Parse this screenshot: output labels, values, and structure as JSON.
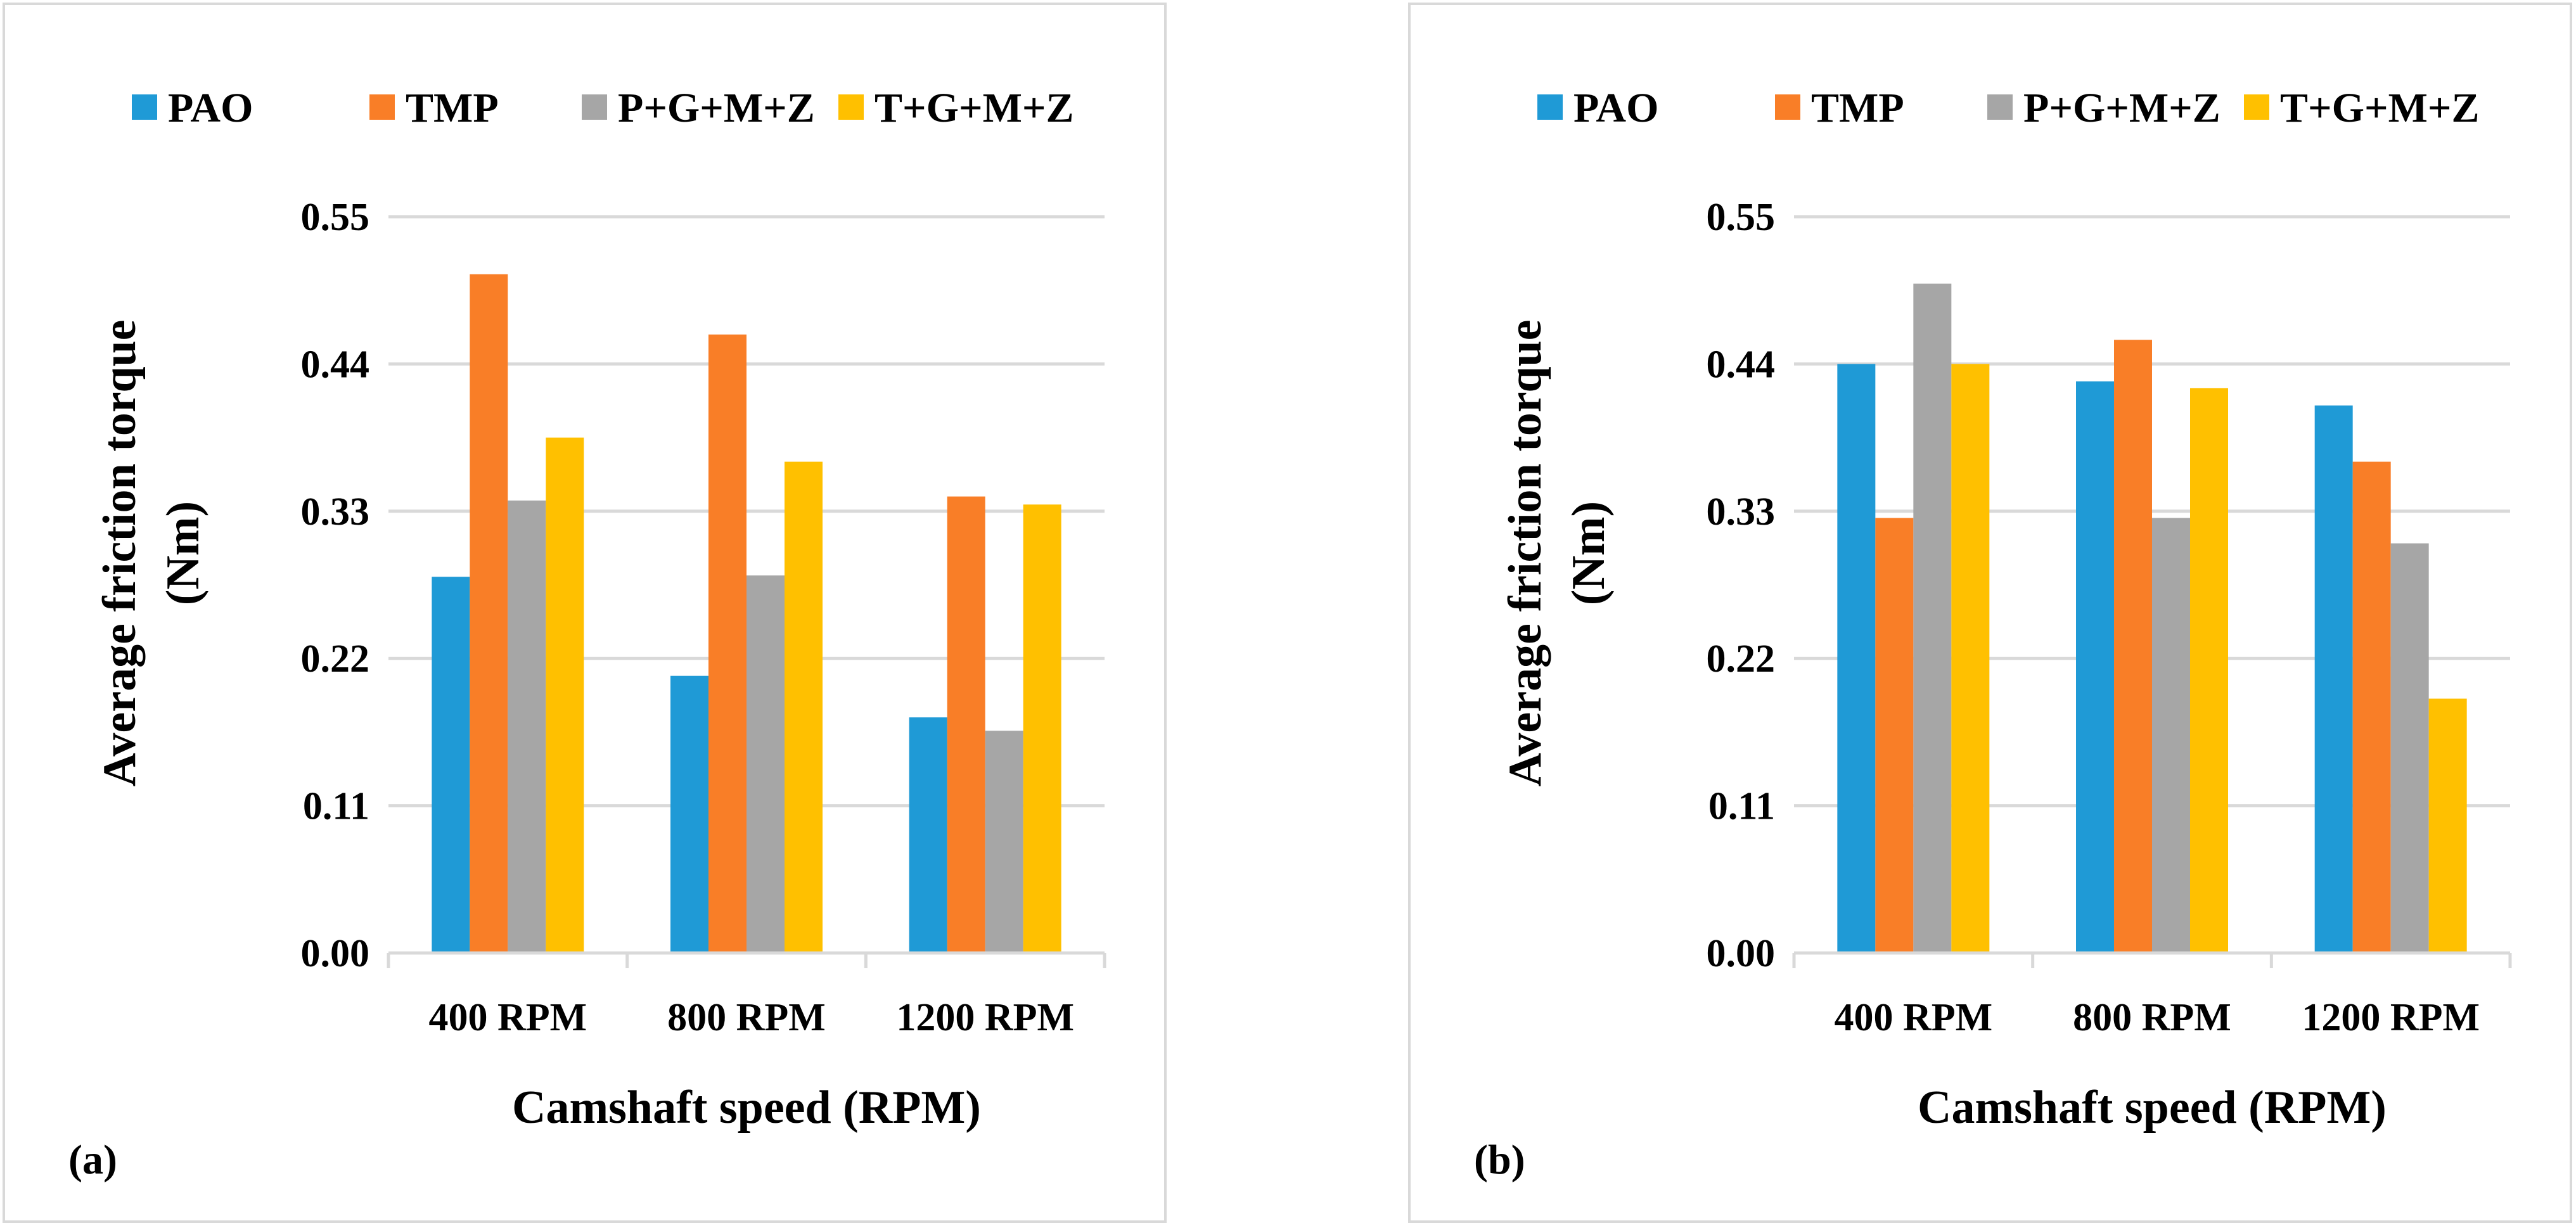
{
  "charts": [
    {
      "panel_tag": "(a)",
      "ylabel_line1": "Average friction torque",
      "ylabel_line2": "(Nm)",
      "xlabel": "Camshaft speed (RPM)"
    },
    {
      "panel_tag": "(b)",
      "ylabel_line1": "Average friction torque",
      "ylabel_line2": "(Nm)",
      "xlabel": "Camshaft speed (RPM)"
    }
  ],
  "chart_data": [
    {
      "type": "bar",
      "title": "(a)",
      "xlabel": "Camshaft speed (RPM)",
      "ylabel": "Average friction torque (Nm)",
      "categories": [
        "400 RPM",
        "800 RPM",
        "1200 RPM"
      ],
      "ylim": [
        0,
        0.55
      ],
      "yticks": [
        "0.00",
        "0.11",
        "0.22",
        "0.33",
        "0.44",
        "0.55"
      ],
      "grid": true,
      "legend": "top",
      "series": [
        {
          "name": "PAO",
          "color": "#1f9ad6",
          "values": [
            0.281,
            0.207,
            0.176
          ]
        },
        {
          "name": "TMP",
          "color": "#f97e27",
          "values": [
            0.507,
            0.462,
            0.341
          ]
        },
        {
          "name": "P+G+M+Z",
          "color": "#a6a6a6",
          "values": [
            0.338,
            0.282,
            0.166
          ]
        },
        {
          "name": "T+G+M+Z",
          "color": "#ffc000",
          "values": [
            0.385,
            0.367,
            0.335
          ]
        }
      ]
    },
    {
      "type": "bar",
      "title": "(b)",
      "xlabel": "Camshaft speed (RPM)",
      "ylabel": "Average friction torque (Nm)",
      "categories": [
        "400 RPM",
        "800 RPM",
        "1200 RPM"
      ],
      "ylim": [
        0,
        0.55
      ],
      "yticks": [
        "0.00",
        "0.11",
        "0.22",
        "0.33",
        "0.44",
        "0.55"
      ],
      "grid": true,
      "legend": "top",
      "series": [
        {
          "name": "PAO",
          "color": "#1f9ad6",
          "values": [
            0.44,
            0.427,
            0.409
          ]
        },
        {
          "name": "TMP",
          "color": "#f97e27",
          "values": [
            0.325,
            0.458,
            0.367
          ]
        },
        {
          "name": "P+G+M+Z",
          "color": "#a6a6a6",
          "values": [
            0.5,
            0.325,
            0.306
          ]
        },
        {
          "name": "T+G+M+Z",
          "color": "#ffc000",
          "values": [
            0.44,
            0.422,
            0.19
          ]
        }
      ]
    }
  ]
}
